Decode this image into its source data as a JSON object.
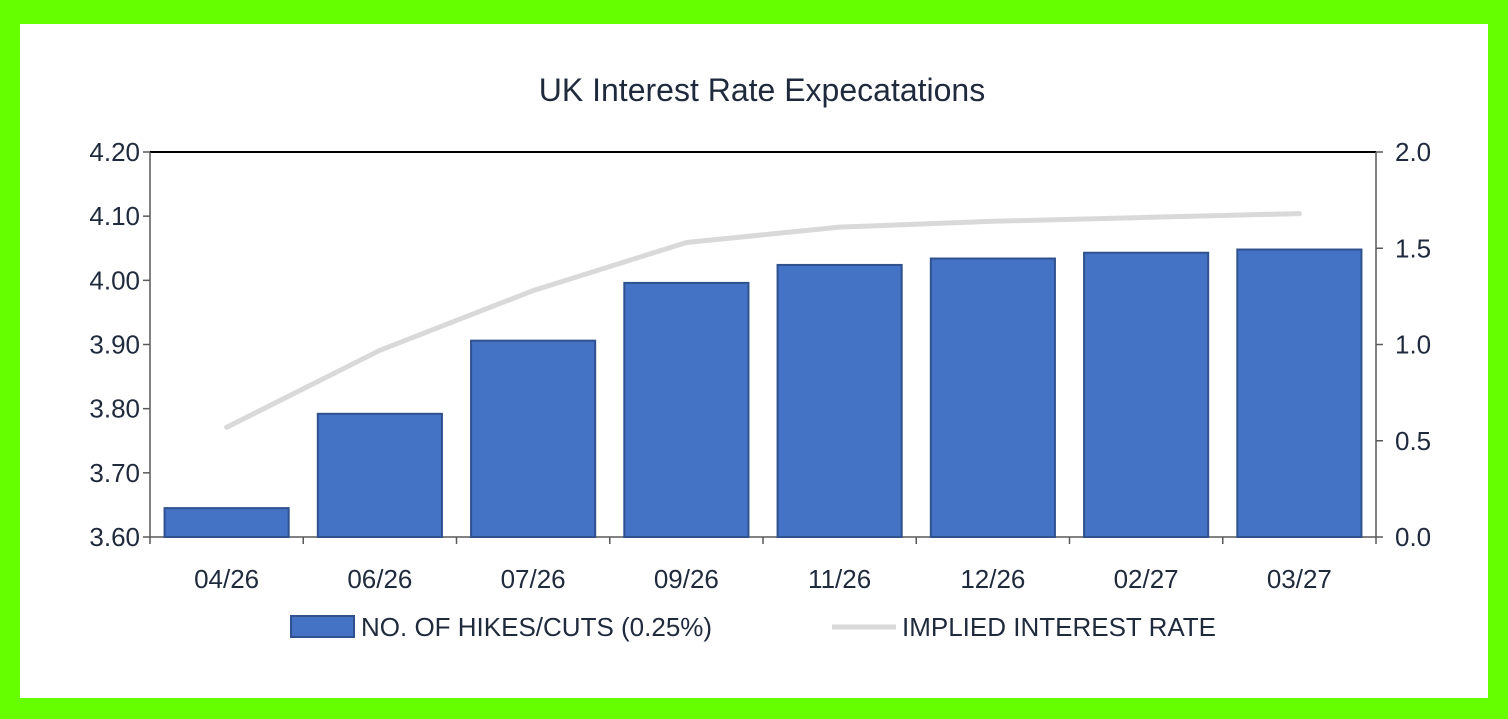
{
  "chart_data": {
    "type": "bar",
    "title": "UK Interest Rate Expecatations",
    "categories": [
      "04/26",
      "06/26",
      "07/26",
      "09/26",
      "11/26",
      "12/26",
      "02/27",
      "03/27"
    ],
    "series": [
      {
        "name": "NO. OF HIKES/CUTS (0.25%)",
        "type": "bar",
        "axis": "left",
        "color": "#4472c4",
        "values": [
          3.645,
          3.792,
          3.906,
          3.996,
          4.024,
          4.034,
          4.043,
          4.048
        ]
      },
      {
        "name": "IMPLIED INTEREST RATE",
        "type": "line",
        "axis": "right",
        "color": "#d9d9d9",
        "values": [
          0.57,
          0.97,
          1.28,
          1.53,
          1.61,
          1.64,
          1.66,
          1.68
        ]
      }
    ],
    "y_left": {
      "ylim": [
        3.6,
        4.2
      ],
      "ticks": [
        "3.60",
        "3.70",
        "3.80",
        "3.90",
        "4.00",
        "4.10",
        "4.20"
      ]
    },
    "y_right": {
      "ylim": [
        0.0,
        2.0
      ],
      "ticks": [
        "0.0",
        "0.5",
        "1.0",
        "1.5",
        "2.0"
      ]
    },
    "xlabel": "",
    "ylabel": "",
    "grid": false,
    "legend_position": "bottom"
  }
}
